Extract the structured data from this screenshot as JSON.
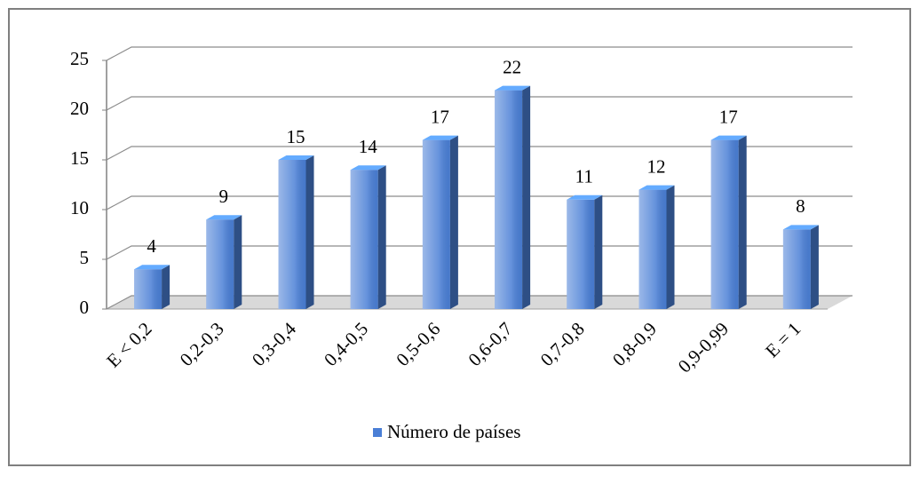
{
  "chart_data": {
    "type": "bar3d",
    "categories": [
      "E < 0,2",
      "0,2-0,3",
      "0,3-0,4",
      "0,4-0,5",
      "0,5-0,6",
      "0,6-0,7",
      "0,7-0,8",
      "0,8-0,9",
      "0,9-0,99",
      "E = 1"
    ],
    "series": [
      {
        "name": "Número de países",
        "color": "#4a7fd6",
        "values": [
          4,
          9,
          15,
          14,
          17,
          22,
          11,
          12,
          17,
          8
        ]
      }
    ],
    "ylim": [
      0,
      25
    ],
    "yticks": [
      0,
      5,
      10,
      15,
      20,
      25
    ],
    "grid": true,
    "legend": "bottom"
  }
}
